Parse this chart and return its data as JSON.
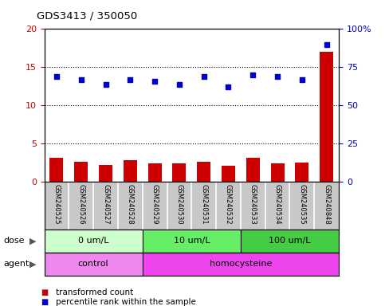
{
  "title": "GDS3413 / 350050",
  "samples": [
    "GSM240525",
    "GSM240526",
    "GSM240527",
    "GSM240528",
    "GSM240529",
    "GSM240530",
    "GSM240531",
    "GSM240532",
    "GSM240533",
    "GSM240534",
    "GSM240535",
    "GSM240848"
  ],
  "transformed_count": [
    3.2,
    2.7,
    2.2,
    2.9,
    2.4,
    2.4,
    2.7,
    2.1,
    3.2,
    2.4,
    2.5,
    17.0
  ],
  "percentile_rank": [
    69,
    67,
    64,
    67,
    66,
    64,
    69,
    62,
    70,
    69,
    67,
    90
  ],
  "ylim_left": [
    0,
    20
  ],
  "ylim_right": [
    0,
    100
  ],
  "yticks_left": [
    0,
    5,
    10,
    15,
    20
  ],
  "yticks_right": [
    0,
    25,
    50,
    75,
    100
  ],
  "bar_color": "#cc0000",
  "dot_color": "#0000cc",
  "dose_groups": [
    {
      "label": "0 um/L",
      "start": 0,
      "end": 4,
      "color": "#ccffcc"
    },
    {
      "label": "10 um/L",
      "start": 4,
      "end": 8,
      "color": "#66ee66"
    },
    {
      "label": "100 um/L",
      "start": 8,
      "end": 12,
      "color": "#44cc44"
    }
  ],
  "agent_groups": [
    {
      "label": "control",
      "start": 0,
      "end": 4,
      "color": "#ee88ee"
    },
    {
      "label": "homocysteine",
      "start": 4,
      "end": 12,
      "color": "#ee44ee"
    }
  ],
  "dose_label": "dose",
  "agent_label": "agent",
  "legend_bar": "transformed count",
  "legend_dot": "percentile rank within the sample",
  "tick_label_color_left": "#cc0000",
  "tick_label_color_right": "#0000cc",
  "background_color": "#ffffff",
  "plot_bg": "#ffffff",
  "xlabel_bg": "#c8c8c8"
}
